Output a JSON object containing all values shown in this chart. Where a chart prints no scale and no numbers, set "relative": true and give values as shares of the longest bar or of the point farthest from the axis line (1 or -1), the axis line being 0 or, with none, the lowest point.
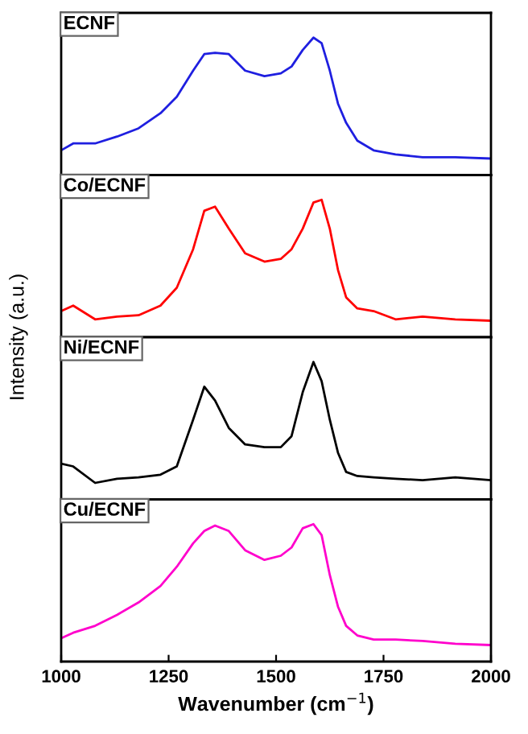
{
  "chart_data": [
    {
      "type": "line",
      "title": "ECNF",
      "ylabel": "Intensity (a.u.)",
      "relative": true,
      "tick_labels": false,
      "xlim": [
        1000,
        2000
      ],
      "x": [
        1000,
        1028,
        1079,
        1130,
        1180,
        1231,
        1269,
        1307,
        1333,
        1358,
        1390,
        1428,
        1473,
        1511,
        1536,
        1562,
        1587,
        1606,
        1625,
        1644,
        1663,
        1689,
        1727,
        1778,
        1841,
        1917,
        2000
      ],
      "series": [
        {
          "color": "#1f1fe0",
          "values": [
            0.18,
            0.23,
            0.23,
            0.28,
            0.34,
            0.45,
            0.57,
            0.76,
            0.88,
            0.89,
            0.88,
            0.76,
            0.72,
            0.74,
            0.79,
            0.91,
            1.0,
            0.96,
            0.76,
            0.52,
            0.38,
            0.25,
            0.18,
            0.15,
            0.13,
            0.13,
            0.12
          ]
        }
      ]
    },
    {
      "type": "line",
      "title": "Co/ECNF",
      "relative": true,
      "tick_labels": false,
      "xlim": [
        1000,
        2000
      ],
      "x": [
        1000,
        1028,
        1079,
        1130,
        1180,
        1231,
        1269,
        1307,
        1333,
        1358,
        1390,
        1428,
        1473,
        1511,
        1536,
        1562,
        1587,
        1606,
        1625,
        1644,
        1663,
        1689,
        1727,
        1778,
        1841,
        1917,
        2000
      ],
      "series": [
        {
          "color": "#ff0000",
          "values": [
            0.19,
            0.23,
            0.13,
            0.15,
            0.16,
            0.23,
            0.36,
            0.64,
            0.92,
            0.95,
            0.79,
            0.61,
            0.55,
            0.57,
            0.64,
            0.79,
            0.98,
            1.0,
            0.79,
            0.49,
            0.29,
            0.21,
            0.19,
            0.13,
            0.15,
            0.13,
            0.12
          ]
        }
      ]
    },
    {
      "type": "line",
      "title": "Ni/ECNF",
      "relative": true,
      "tick_labels": false,
      "xlim": [
        1000,
        2000
      ],
      "x": [
        1000,
        1028,
        1079,
        1130,
        1180,
        1231,
        1269,
        1307,
        1333,
        1358,
        1390,
        1428,
        1473,
        1511,
        1536,
        1562,
        1587,
        1606,
        1625,
        1644,
        1663,
        1689,
        1727,
        1778,
        1841,
        1917,
        2000
      ],
      "series": [
        {
          "color": "#000000",
          "values": [
            0.26,
            0.24,
            0.12,
            0.15,
            0.16,
            0.18,
            0.24,
            0.58,
            0.82,
            0.72,
            0.52,
            0.4,
            0.38,
            0.38,
            0.46,
            0.78,
            1.0,
            0.86,
            0.58,
            0.34,
            0.2,
            0.17,
            0.16,
            0.15,
            0.14,
            0.16,
            0.14
          ]
        }
      ]
    },
    {
      "type": "line",
      "title": "Cu/ECNF",
      "xlabel": "Wavenumber (cm$^{−1}$)",
      "relative": true,
      "tick_labels": "x",
      "xlim": [
        1000,
        2000
      ],
      "xticks": [
        1000,
        1250,
        1500,
        1750,
        2000
      ],
      "x": [
        1000,
        1028,
        1079,
        1130,
        1180,
        1231,
        1269,
        1307,
        1333,
        1358,
        1390,
        1428,
        1473,
        1511,
        1536,
        1562,
        1587,
        1606,
        1625,
        1644,
        1663,
        1689,
        1727,
        1778,
        1841,
        1917,
        2000
      ],
      "series": [
        {
          "color": "#ff00cc",
          "values": [
            0.17,
            0.21,
            0.26,
            0.34,
            0.43,
            0.55,
            0.69,
            0.86,
            0.95,
            0.99,
            0.95,
            0.81,
            0.74,
            0.77,
            0.83,
            0.97,
            1.0,
            0.92,
            0.63,
            0.4,
            0.26,
            0.19,
            0.16,
            0.16,
            0.15,
            0.13,
            0.12
          ]
        }
      ]
    }
  ]
}
